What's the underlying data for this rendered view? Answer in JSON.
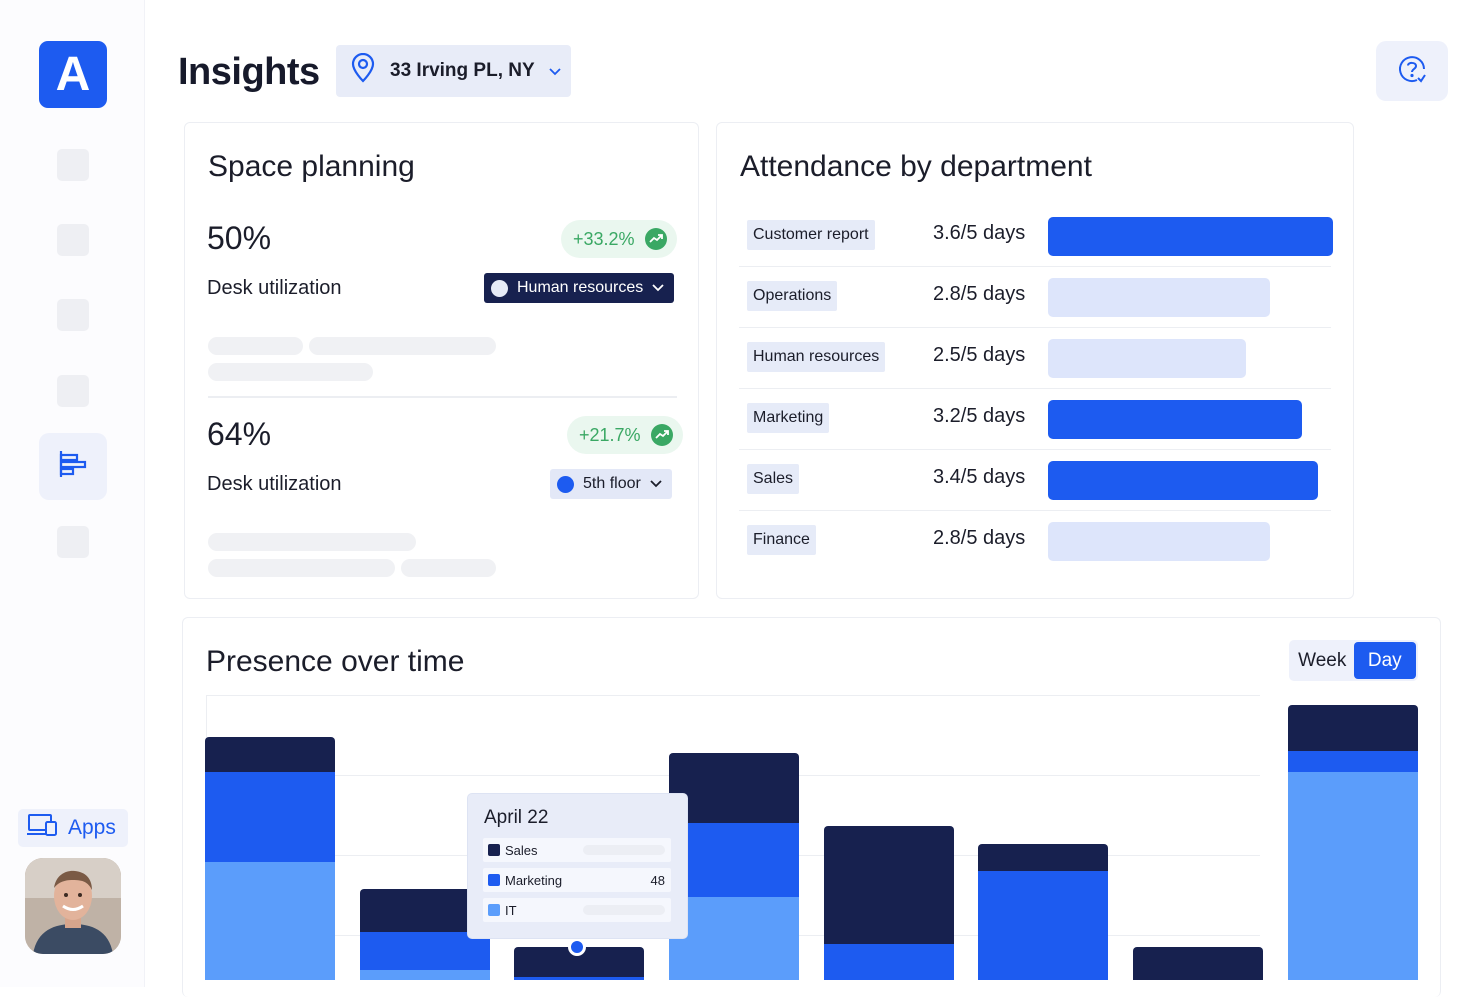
{
  "app": {
    "logo_letter": "A",
    "apps_label": "Apps",
    "brand_color": "#1d5bf0"
  },
  "header": {
    "title": "Insights",
    "location": "33 Irving PL, NY"
  },
  "space_planning": {
    "title": "Space planning",
    "metrics": [
      {
        "value": "50%",
        "label": "Desk utilization",
        "trend": "+33.2%",
        "filter": "Human resources"
      },
      {
        "value": "64%",
        "label": "Desk utilization",
        "trend": "+21.7%",
        "filter": "5th floor"
      }
    ]
  },
  "attendance": {
    "title": "Attendance by department",
    "rows": [
      {
        "department": "Customer report",
        "days": "3.6/5 days",
        "value": 3.6,
        "highlight": true
      },
      {
        "department": "Operations",
        "days": "2.8/5 days",
        "value": 2.8,
        "highlight": false
      },
      {
        "department": "Human resources",
        "days": "2.5/5 days",
        "value": 2.5,
        "highlight": false
      },
      {
        "department": "Marketing",
        "days": "3.2/5 days",
        "value": 3.2,
        "highlight": true
      },
      {
        "department": "Sales",
        "days": "3.4/5 days",
        "value": 3.4,
        "highlight": true
      },
      {
        "department": "Finance",
        "days": "2.8/5 days",
        "value": 2.8,
        "highlight": false
      }
    ],
    "colors": {
      "high": "#1d5bf0",
      "low": "#dde5fb"
    }
  },
  "presence": {
    "title": "Presence over time",
    "toggle": [
      "Week",
      "Day"
    ],
    "toggle_selected": "Day",
    "tooltip": {
      "date": "April 22",
      "rows": [
        {
          "label": "Sales",
          "value": "",
          "color": "#17214f"
        },
        {
          "label": "Marketing",
          "value": "48",
          "color": "#1d5bf0"
        },
        {
          "label": "IT",
          "value": "",
          "color": "#5b9dfb"
        }
      ]
    },
    "colors": {
      "sales": "#17214f",
      "marketing": "#1d5bf0",
      "it": "#5b9dfb"
    }
  }
}
